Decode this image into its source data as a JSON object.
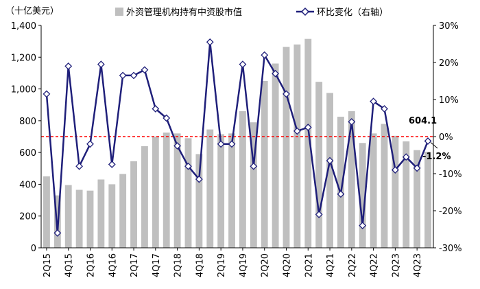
{
  "chart_data": {
    "type": "bar+line",
    "unit_label": "（十亿美元）",
    "categories": [
      "2Q15",
      "3Q15",
      "4Q15",
      "1Q16",
      "2Q16",
      "3Q16",
      "4Q16",
      "1Q17",
      "2Q17",
      "3Q17",
      "4Q17",
      "1Q18",
      "2Q18",
      "3Q18",
      "4Q18",
      "1Q19",
      "2Q19",
      "3Q19",
      "4Q19",
      "1Q20",
      "2Q20",
      "3Q20",
      "4Q20",
      "1Q21",
      "2Q21",
      "3Q21",
      "4Q21",
      "1Q22",
      "2Q22",
      "3Q22",
      "4Q22",
      "1Q23",
      "2Q23",
      "3Q23",
      "4Q23",
      "1Q24"
    ],
    "x_tick_labels": [
      "2Q15",
      "4Q15",
      "2Q16",
      "4Q16",
      "2Q17",
      "4Q17",
      "2Q18",
      "4Q18",
      "2Q19",
      "4Q19",
      "2Q20",
      "4Q20",
      "2Q21",
      "4Q21",
      "2Q22",
      "4Q22",
      "2Q23",
      "4Q23"
    ],
    "series": [
      {
        "name": "外资管理机构持有中资股市值",
        "kind": "bar",
        "axis": "left",
        "color": "#bfbfbf",
        "values": [
          450,
          330,
          395,
          365,
          360,
          430,
          400,
          465,
          545,
          640,
          700,
          725,
          720,
          690,
          590,
          745,
          715,
          720,
          860,
          790,
          1050,
          1160,
          1265,
          1280,
          1315,
          1045,
          975,
          825,
          860,
          660,
          720,
          780,
          705,
          670,
          615,
          604.1
        ]
      },
      {
        "name": "环比变化（右轴）",
        "kind": "line",
        "axis": "right",
        "color": "#1f1f7a",
        "marker": "diamond",
        "values": [
          11.5,
          -26,
          19,
          -8,
          -2,
          19.5,
          -7.5,
          16.5,
          16.5,
          18,
          7.5,
          5,
          -2.5,
          -8,
          -11.5,
          25.5,
          -2,
          -2,
          19.5,
          -8,
          22,
          17,
          11.5,
          1.5,
          2.5,
          -21,
          -6.5,
          -15.5,
          4,
          -24,
          9.5,
          7.5,
          -9,
          -5.5,
          -8.5,
          -1.2
        ]
      }
    ],
    "y_left": {
      "min": 0,
      "max": 1400,
      "step": 200,
      "tick_labels": [
        "0",
        "200",
        "400",
        "600",
        "800",
        "1,000",
        "1,200",
        "1,400"
      ]
    },
    "y_right": {
      "min": -30,
      "max": 30,
      "step": 10,
      "tick_labels": [
        "-30%",
        "-20%",
        "-10%",
        "0%",
        "10%",
        "20%",
        "30%"
      ]
    },
    "reference_line": {
      "axis": "right",
      "value": 0,
      "color": "#ff0000",
      "style": "dashed"
    },
    "annotations": [
      {
        "text": "604.1",
        "series": "bar",
        "index": 35
      },
      {
        "text": "-1.2%",
        "series": "line",
        "index": 35
      }
    ],
    "legend": {
      "placement": "top"
    },
    "grid": false
  }
}
